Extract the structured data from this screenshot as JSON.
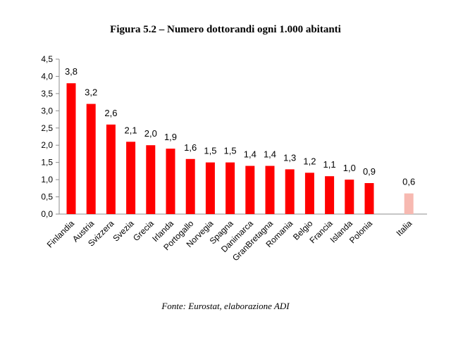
{
  "chart_data": {
    "type": "bar",
    "title": "Figura 5.2 – Numero dottorandi ogni 1.000 abitanti",
    "categories": [
      "Finlandia",
      "Austria",
      "Svizzera",
      "Svezia",
      "Grecia",
      "Irlanda",
      "Portogallo",
      "Norvegia",
      "Spagna",
      "Danimarca",
      "GranBretagna",
      "Romania",
      "Belgio",
      "Francia",
      "Islanda",
      "Polonia",
      "Italia"
    ],
    "values": [
      3.8,
      3.2,
      2.6,
      2.1,
      2.0,
      1.9,
      1.6,
      1.5,
      1.5,
      1.4,
      1.4,
      1.3,
      1.2,
      1.1,
      1.0,
      0.9,
      0.6
    ],
    "value_labels": [
      "3,8",
      "3,2",
      "2,6",
      "2,1",
      "2,0",
      "1,9",
      "1,6",
      "1,5",
      "1,5",
      "1,4",
      "1,4",
      "1,3",
      "1,2",
      "1,1",
      "1,0",
      "0,9",
      "0,6"
    ],
    "ylim": [
      0,
      4.5
    ],
    "yticks": [
      0,
      0.5,
      1.0,
      1.5,
      2.0,
      2.5,
      3.0,
      3.5,
      4.0,
      4.5
    ],
    "ytick_labels": [
      "0,0",
      "0,5",
      "1,0",
      "1,5",
      "2,0",
      "2,5",
      "3,0",
      "3,5",
      "4,0",
      "4,5"
    ],
    "xlabel": "",
    "ylabel": "",
    "grid": false,
    "colors": {
      "default": "#ff0000",
      "highlight": "#f7b9b1"
    },
    "highlight_category": "Italia"
  },
  "source": "Fonte: Eurostat, elaborazione ADI"
}
